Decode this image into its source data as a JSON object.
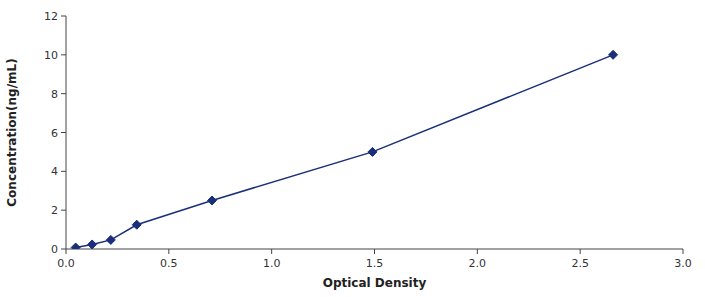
{
  "chart_data": {
    "type": "line",
    "x": [
      0.047,
      0.127,
      0.218,
      0.344,
      0.71,
      1.49,
      2.66
    ],
    "values": [
      0.078,
      0.234,
      0.469,
      1.25,
      2.5,
      5.0,
      10.0
    ],
    "color": "#1a2f7a",
    "marker": "diamond",
    "line_style": "solid",
    "xlabel": "Optical Density",
    "ylabel": "Concentration(ng/mL)",
    "xlim": [
      0,
      3.0
    ],
    "ylim": [
      0,
      12
    ],
    "xticks": [
      {
        "value": 0,
        "label": "0.0"
      },
      0.5,
      {
        "value": 1,
        "label": "1.0"
      },
      1.5,
      {
        "value": 2,
        "label": "2.0"
      },
      2.5,
      {
        "value": 3,
        "label": "3.0"
      }
    ],
    "yticks": [
      0,
      2,
      4,
      6,
      8,
      10,
      12
    ],
    "grid": false
  }
}
